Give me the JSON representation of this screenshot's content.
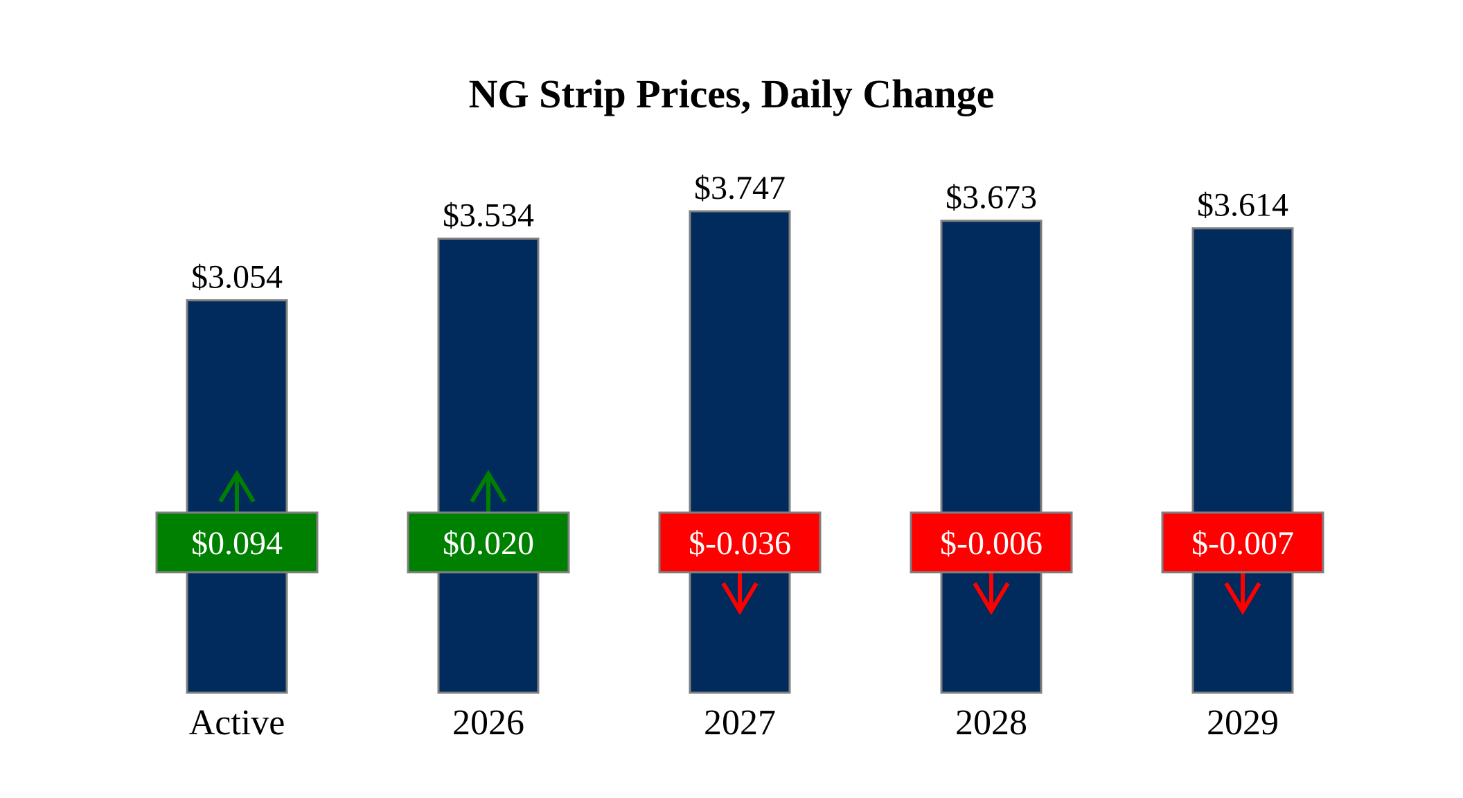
{
  "chart_data": {
    "type": "bar",
    "title": "NG Strip Prices, Daily Change",
    "categories": [
      "Active",
      "2026",
      "2027",
      "2028",
      "2029"
    ],
    "values": [
      3.054,
      3.534,
      3.747,
      3.673,
      3.614
    ],
    "value_labels": [
      "$3.054",
      "$3.534",
      "$3.747",
      "$3.673",
      "$3.614"
    ],
    "changes": [
      0.094,
      0.02,
      -0.036,
      -0.006,
      -0.007
    ],
    "change_labels": [
      "$0.094",
      "$0.020",
      "$-0.036",
      "$-0.006",
      "$-0.007"
    ],
    "ylim": [
      0,
      3.747
    ],
    "grid": false,
    "xlabel": "",
    "ylabel": "",
    "colors": {
      "bar": "#002b5c",
      "bar_edge": "#808080",
      "up": "#008000",
      "down": "#ff0000"
    }
  }
}
